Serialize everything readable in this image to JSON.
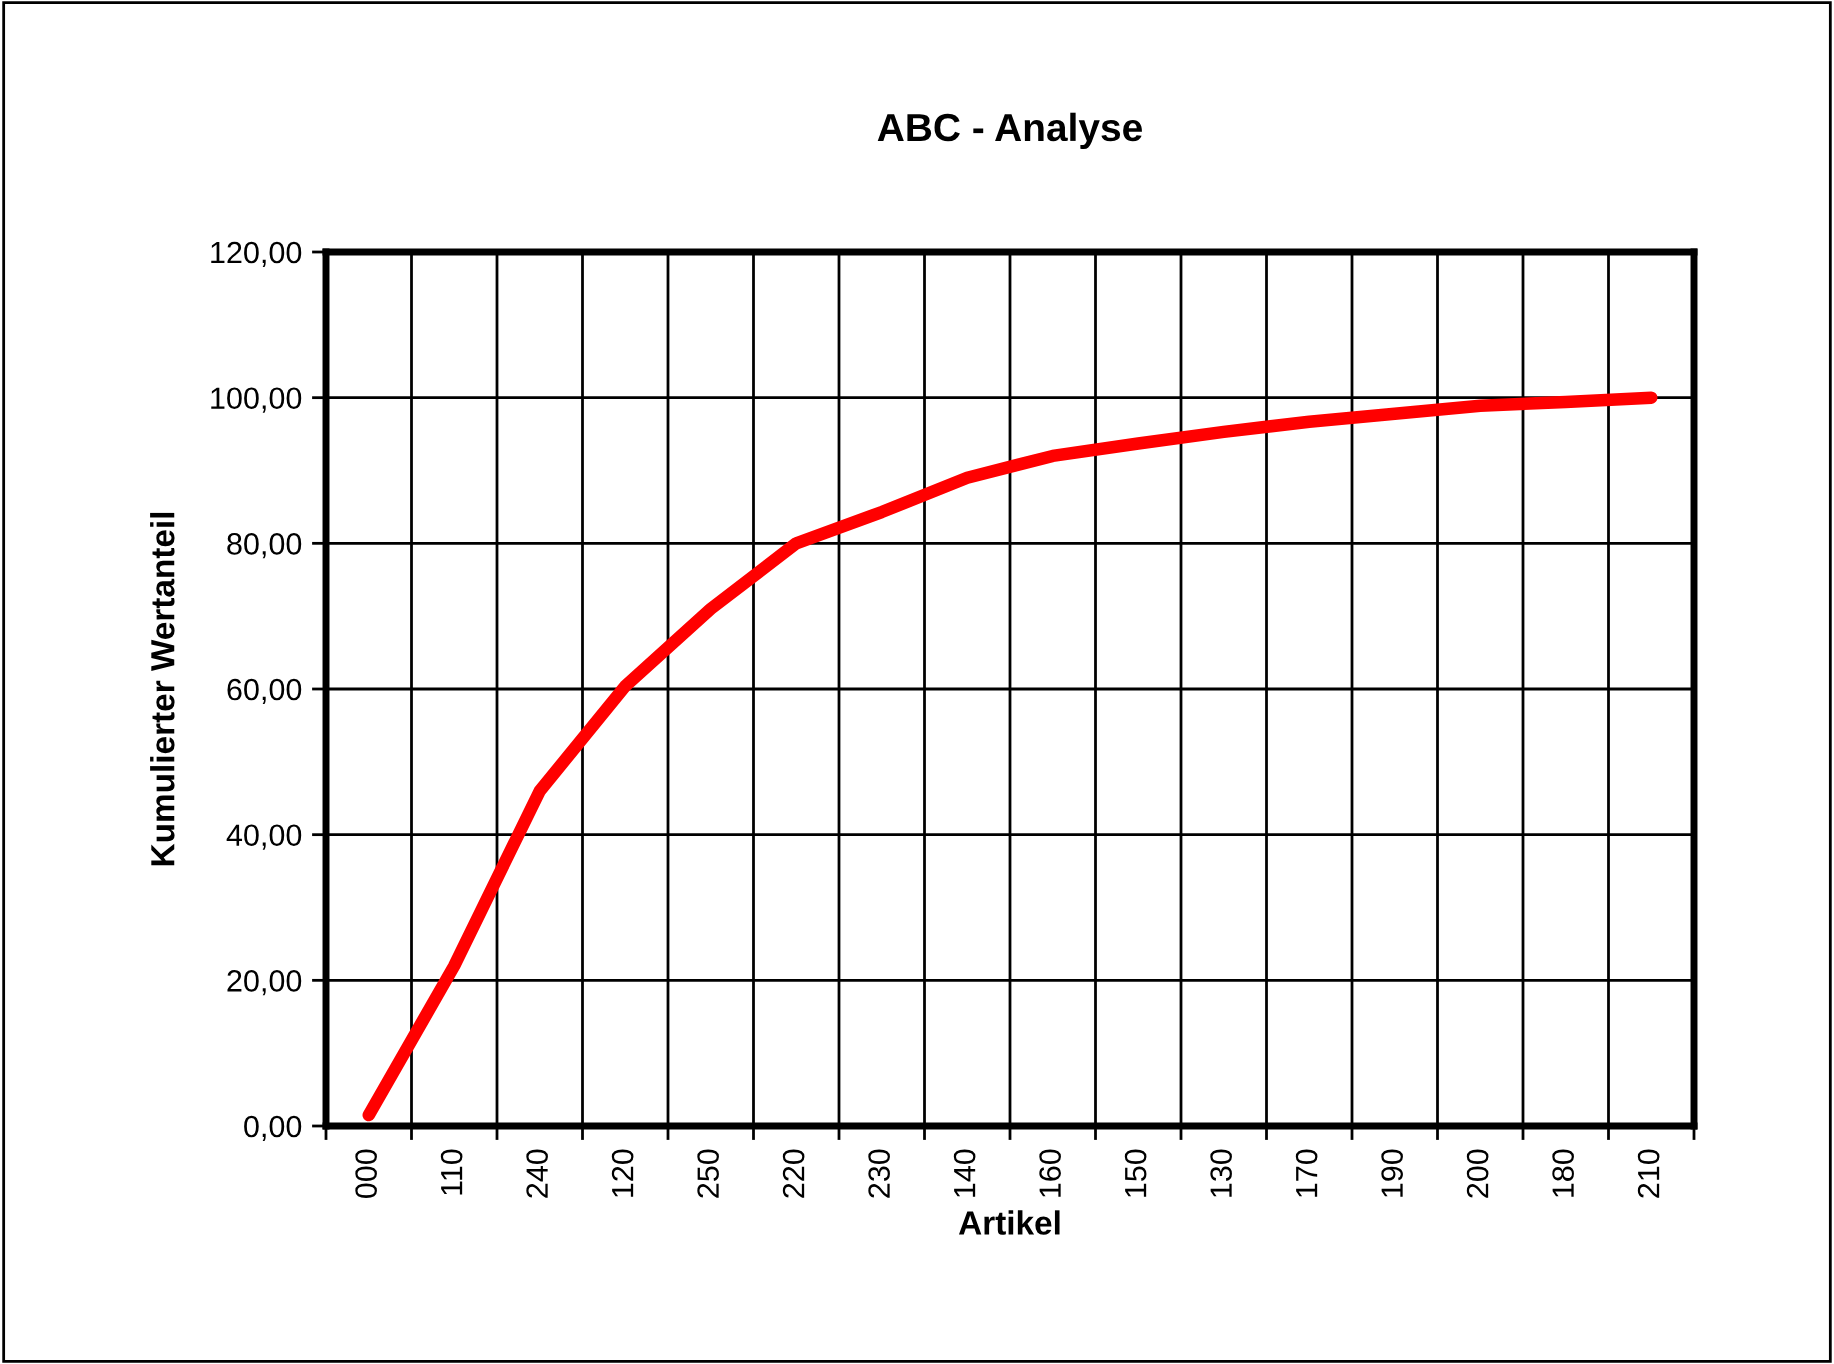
{
  "chart_data": {
    "type": "line",
    "title": "ABC - Analyse",
    "xlabel": "Artikel",
    "ylabel": "Kumulierter Wertanteil",
    "categories": [
      "000",
      "110",
      "240",
      "120",
      "250",
      "220",
      "230",
      "140",
      "160",
      "150",
      "130",
      "170",
      "190",
      "200",
      "180",
      "210"
    ],
    "series": [
      {
        "color": "#ff0000",
        "values": [
          1.5,
          22,
          46,
          60.4,
          71,
          80,
          84.3,
          89,
          92,
          93.7,
          95.3,
          96.7,
          97.8,
          98.9,
          99.4,
          100
        ]
      }
    ],
    "ylim": [
      0,
      120
    ],
    "yticks": [
      {
        "value": 0,
        "label": "0,00"
      },
      {
        "value": 20,
        "label": "20,00"
      },
      {
        "value": 40,
        "label": "40,00"
      },
      {
        "value": 60,
        "label": "60,00"
      },
      {
        "value": 80,
        "label": "80,00"
      },
      {
        "value": 100,
        "label": "100,00"
      },
      {
        "value": 120,
        "label": "120,00"
      }
    ],
    "grid": true,
    "marker": "none",
    "line_style": "solid",
    "legend": false
  }
}
